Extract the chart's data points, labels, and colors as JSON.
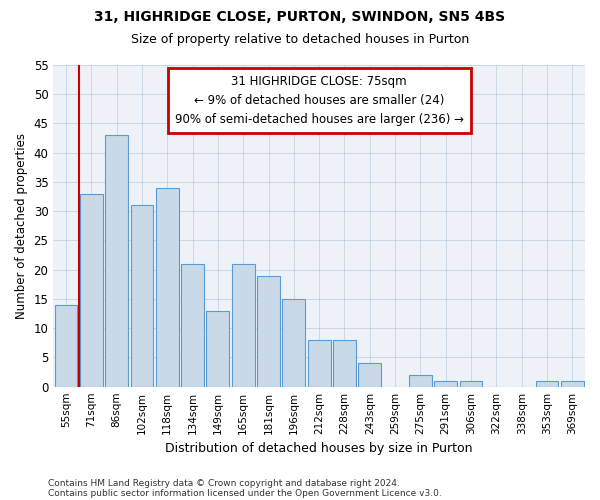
{
  "title1": "31, HIGHRIDGE CLOSE, PURTON, SWINDON, SN5 4BS",
  "title2": "Size of property relative to detached houses in Purton",
  "xlabel": "Distribution of detached houses by size in Purton",
  "ylabel": "Number of detached properties",
  "categories": [
    "55sqm",
    "71sqm",
    "86sqm",
    "102sqm",
    "118sqm",
    "134sqm",
    "149sqm",
    "165sqm",
    "181sqm",
    "196sqm",
    "212sqm",
    "228sqm",
    "243sqm",
    "259sqm",
    "275sqm",
    "291sqm",
    "306sqm",
    "322sqm",
    "338sqm",
    "353sqm",
    "369sqm"
  ],
  "values": [
    14,
    33,
    43,
    31,
    34,
    21,
    13,
    21,
    19,
    15,
    8,
    8,
    4,
    0,
    2,
    1,
    1,
    0,
    0,
    1,
    1
  ],
  "bar_color": "#c9d9e8",
  "bar_edge_color": "#5b9bd5",
  "ylim": [
    0,
    55
  ],
  "yticks": [
    0,
    5,
    10,
    15,
    20,
    25,
    30,
    35,
    40,
    45,
    50,
    55
  ],
  "annotation_title": "31 HIGHRIDGE CLOSE: 75sqm",
  "annotation_line1": "← 9% of detached houses are smaller (24)",
  "annotation_line2": "90% of semi-detached houses are larger (236) →",
  "annotation_box_color": "#ffffff",
  "annotation_box_edge": "#cc0000",
  "vline_color": "#cc0000",
  "background_color": "#eef2f8",
  "footer1": "Contains HM Land Registry data © Crown copyright and database right 2024.",
  "footer2": "Contains public sector information licensed under the Open Government Licence v3.0."
}
